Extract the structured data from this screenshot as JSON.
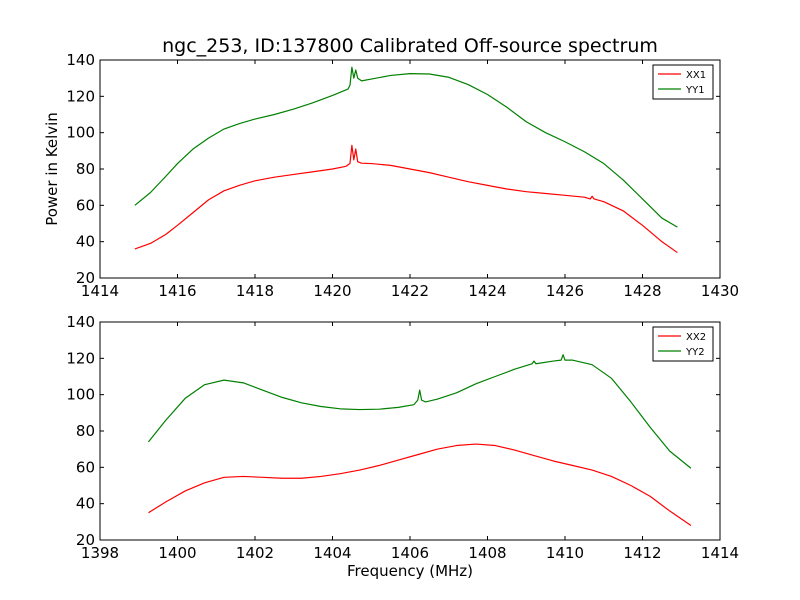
{
  "figure": {
    "title": "ngc_253, ID:137800 Calibrated Off-source spectrum",
    "shared_xlabel": "Frequency (MHz)",
    "ylabel_top": "Power in Kelvin"
  },
  "chart_data": [
    {
      "type": "line",
      "title": "ngc_253, ID:137800 Calibrated Off-source spectrum",
      "xlabel": "",
      "ylabel": "Power in Kelvin",
      "xlim": [
        1414,
        1430
      ],
      "ylim": [
        20,
        140
      ],
      "xticks": [
        1414,
        1416,
        1418,
        1420,
        1422,
        1424,
        1426,
        1428,
        1430
      ],
      "yticks": [
        20,
        40,
        60,
        80,
        100,
        120,
        140
      ],
      "grid": false,
      "legend": "top-right",
      "series": [
        {
          "name": "XX1",
          "color": "#ff0000",
          "points": [
            [
              1414.9,
              36
            ],
            [
              1415.3,
              39
            ],
            [
              1415.7,
              44
            ],
            [
              1416.0,
              49
            ],
            [
              1416.4,
              56
            ],
            [
              1416.8,
              63
            ],
            [
              1417.2,
              68
            ],
            [
              1417.6,
              71
            ],
            [
              1418.0,
              73.5
            ],
            [
              1418.5,
              75.5
            ],
            [
              1419.0,
              77
            ],
            [
              1419.5,
              78.5
            ],
            [
              1420.0,
              80
            ],
            [
              1420.35,
              81.5
            ],
            [
              1420.45,
              83
            ],
            [
              1420.5,
              93
            ],
            [
              1420.55,
              85
            ],
            [
              1420.6,
              91
            ],
            [
              1420.65,
              84
            ],
            [
              1420.75,
              83.2
            ],
            [
              1421.0,
              83
            ],
            [
              1421.5,
              82
            ],
            [
              1422.0,
              80
            ],
            [
              1422.5,
              78
            ],
            [
              1423.0,
              75.5
            ],
            [
              1423.5,
              73
            ],
            [
              1424.0,
              71
            ],
            [
              1424.5,
              69
            ],
            [
              1425.0,
              67.5
            ],
            [
              1425.5,
              66.5
            ],
            [
              1426.0,
              65.5
            ],
            [
              1426.5,
              64.5
            ],
            [
              1426.65,
              63.5
            ],
            [
              1426.7,
              65
            ],
            [
              1426.75,
              63.5
            ],
            [
              1427.0,
              62
            ],
            [
              1427.5,
              57
            ],
            [
              1428.0,
              49
            ],
            [
              1428.5,
              40
            ],
            [
              1428.9,
              34
            ]
          ]
        },
        {
          "name": "YY1",
          "color": "#008000",
          "points": [
            [
              1414.9,
              60
            ],
            [
              1415.3,
              67
            ],
            [
              1415.7,
              76
            ],
            [
              1416.0,
              83
            ],
            [
              1416.4,
              91
            ],
            [
              1416.8,
              97
            ],
            [
              1417.2,
              102
            ],
            [
              1417.6,
              105
            ],
            [
              1418.0,
              107.5
            ],
            [
              1418.5,
              110
            ],
            [
              1419.0,
              113
            ],
            [
              1419.5,
              116.5
            ],
            [
              1420.0,
              120.5
            ],
            [
              1420.4,
              124
            ],
            [
              1420.45,
              126
            ],
            [
              1420.5,
              136
            ],
            [
              1420.55,
              130
            ],
            [
              1420.6,
              134.5
            ],
            [
              1420.65,
              130
            ],
            [
              1420.75,
              128.5
            ],
            [
              1421.0,
              129.5
            ],
            [
              1421.5,
              131.5
            ],
            [
              1422.0,
              132.5
            ],
            [
              1422.5,
              132.3
            ],
            [
              1423.0,
              130.5
            ],
            [
              1423.5,
              126.5
            ],
            [
              1424.0,
              121
            ],
            [
              1424.5,
              114
            ],
            [
              1425.0,
              106
            ],
            [
              1425.5,
              100
            ],
            [
              1426.0,
              95
            ],
            [
              1426.5,
              89.5
            ],
            [
              1427.0,
              83
            ],
            [
              1427.5,
              74
            ],
            [
              1428.0,
              63.5
            ],
            [
              1428.5,
              53
            ],
            [
              1428.9,
              48
            ]
          ]
        }
      ]
    },
    {
      "type": "line",
      "title": "",
      "xlabel": "Frequency (MHz)",
      "ylabel": "",
      "xlim": [
        1398,
        1414
      ],
      "ylim": [
        20,
        140
      ],
      "xticks": [
        1398,
        1400,
        1402,
        1404,
        1406,
        1408,
        1410,
        1412,
        1414
      ],
      "yticks": [
        20,
        40,
        60,
        80,
        100,
        120,
        140
      ],
      "grid": false,
      "legend": "top-right",
      "series": [
        {
          "name": "XX2",
          "color": "#ff0000",
          "points": [
            [
              1399.25,
              35
            ],
            [
              1399.7,
              41
            ],
            [
              1400.2,
              47
            ],
            [
              1400.7,
              51.5
            ],
            [
              1401.2,
              54.5
            ],
            [
              1401.7,
              55
            ],
            [
              1402.2,
              54.5
            ],
            [
              1402.7,
              54
            ],
            [
              1403.2,
              54
            ],
            [
              1403.7,
              55
            ],
            [
              1404.2,
              56.5
            ],
            [
              1404.7,
              58.5
            ],
            [
              1405.2,
              61
            ],
            [
              1405.7,
              64
            ],
            [
              1406.2,
              67
            ],
            [
              1406.7,
              70
            ],
            [
              1407.2,
              72
            ],
            [
              1407.7,
              72.8
            ],
            [
              1408.2,
              72
            ],
            [
              1408.7,
              69.5
            ],
            [
              1409.2,
              66.5
            ],
            [
              1409.7,
              63.5
            ],
            [
              1410.2,
              61
            ],
            [
              1410.7,
              58.5
            ],
            [
              1411.2,
              55
            ],
            [
              1411.7,
              50
            ],
            [
              1412.2,
              44
            ],
            [
              1412.7,
              36
            ],
            [
              1413.25,
              28
            ]
          ]
        },
        {
          "name": "YY2",
          "color": "#008000",
          "points": [
            [
              1399.25,
              74
            ],
            [
              1399.7,
              86
            ],
            [
              1400.2,
              98
            ],
            [
              1400.7,
              105.5
            ],
            [
              1401.2,
              108
            ],
            [
              1401.7,
              106.5
            ],
            [
              1402.2,
              102.5
            ],
            [
              1402.7,
              98.5
            ],
            [
              1403.2,
              95.5
            ],
            [
              1403.7,
              93.5
            ],
            [
              1404.2,
              92.2
            ],
            [
              1404.7,
              91.8
            ],
            [
              1405.2,
              92
            ],
            [
              1405.7,
              93
            ],
            [
              1406.1,
              94.5
            ],
            [
              1406.2,
              97
            ],
            [
              1406.25,
              102.5
            ],
            [
              1406.3,
              97
            ],
            [
              1406.4,
              96
            ],
            [
              1406.7,
              97.5
            ],
            [
              1407.2,
              101
            ],
            [
              1407.7,
              106
            ],
            [
              1408.2,
              110
            ],
            [
              1408.7,
              114
            ],
            [
              1409.15,
              117
            ],
            [
              1409.2,
              118.5
            ],
            [
              1409.25,
              117
            ],
            [
              1409.7,
              118.5
            ],
            [
              1409.9,
              119
            ],
            [
              1409.95,
              122
            ],
            [
              1410.0,
              119
            ],
            [
              1410.2,
              119
            ],
            [
              1410.7,
              116.5
            ],
            [
              1411.2,
              109
            ],
            [
              1411.7,
              96
            ],
            [
              1412.2,
              82
            ],
            [
              1412.7,
              69
            ],
            [
              1413.25,
              59.5
            ]
          ]
        }
      ]
    }
  ]
}
